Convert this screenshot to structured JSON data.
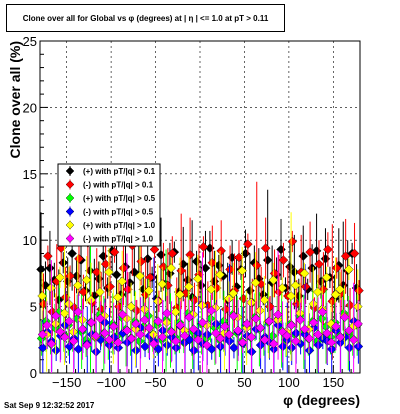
{
  "chart_data": {
    "type": "scatter",
    "title": "Clone  over all for Global vs φ (degrees) at | η | <= 1.0 at pT > 0.11",
    "xlabel": "φ (degrees)",
    "ylabel": "Clone  over all (%)",
    "xlim": [
      -180,
      180
    ],
    "ylim": [
      0,
      25
    ],
    "x_ticks": [
      -150,
      -100,
      -50,
      0,
      50,
      100,
      150
    ],
    "y_ticks": [
      0,
      5,
      10,
      15,
      20,
      25
    ],
    "grid": true,
    "legend_position": "middle-left",
    "series": [
      {
        "name": "(+) with pT/|q| > 0.1",
        "color": "#000000",
        "values": [
          7.8,
          6.6,
          7.9,
          7.0,
          5.5,
          8.3,
          6.9,
          9.0,
          7.3,
          8.5,
          6.2,
          7.7,
          5.8,
          7.1,
          8.8,
          6.4,
          9.2,
          7.4,
          5.9,
          8.0,
          6.8,
          7.6,
          10.2,
          6.3,
          8.6,
          7.2,
          5.6,
          8.9,
          6.7,
          7.5,
          9.1,
          6.1,
          8.2,
          7.0,
          5.7,
          8.4,
          6.6,
          7.9,
          9.4,
          6.9,
          8.1,
          7.3,
          5.5,
          8.7,
          6.5,
          7.8,
          9.0,
          6.2,
          8.3,
          7.1,
          5.9,
          8.5,
          6.8,
          7.4,
          9.3,
          6.4,
          8.0,
          7.6,
          5.8,
          8.8,
          6.3,
          7.9,
          9.2,
          6.9,
          8.6,
          7.2,
          5.6,
          8.1,
          6.6,
          7.7,
          9.0,
          6.4
        ]
      },
      {
        "name": "(-) with pT/|q| > 0.1",
        "color": "#ff0000",
        "values": [
          5.2,
          8.8,
          4.6,
          6.9,
          9.4,
          5.7,
          7.3,
          4.9,
          8.6,
          6.1,
          9.8,
          5.3,
          7.6,
          4.8,
          8.2,
          6.5,
          9.1,
          5.0,
          7.9,
          6.3,
          9.6,
          4.7,
          8.4,
          5.9,
          7.2,
          9.3,
          5.4,
          8.0,
          6.6,
          9.0,
          4.9,
          7.7,
          6.0,
          8.9,
          5.5,
          7.4,
          9.5,
          5.1,
          8.3,
          6.4,
          9.2,
          4.8,
          7.8,
          6.2,
          8.7,
          5.6,
          9.7,
          5.3,
          8.1,
          6.7,
          9.4,
          5.0,
          7.5,
          6.1,
          8.5,
          5.8,
          9.9,
          5.2,
          7.6,
          6.5,
          9.1,
          4.9,
          8.2,
          6.3,
          9.3,
          5.4,
          7.9,
          6.0,
          8.8,
          5.1,
          9.0,
          6.2
        ]
      },
      {
        "name": "(+) with pT/|q| > 0.5",
        "color": "#00ff00",
        "values": [
          2.6,
          3.9,
          2.2,
          3.4,
          4.6,
          2.9,
          3.6,
          2.4,
          4.1,
          3.1,
          2.5,
          3.8,
          2.7,
          4.4,
          3.0,
          2.3,
          3.7,
          2.8,
          4.2,
          3.3,
          2.6,
          3.9,
          2.4,
          3.5,
          4.3,
          2.9,
          3.6,
          2.5,
          4.0,
          3.2,
          2.7,
          3.8,
          2.3,
          4.5,
          3.1,
          2.8,
          3.7,
          2.6,
          4.1,
          3.4,
          2.5,
          3.9,
          2.9,
          4.4,
          3.0,
          2.4,
          3.6,
          2.7,
          4.2,
          3.3,
          2.6,
          3.8,
          2.8,
          4.0,
          3.2,
          2.5,
          3.7,
          2.9,
          4.3,
          3.1,
          2.6,
          3.9,
          2.4,
          4.1,
          3.5,
          2.7,
          3.8,
          2.8,
          4.5,
          3.0,
          2.6,
          3.6
        ]
      },
      {
        "name": "(-) with pT/|q| > 0.5",
        "color": "#0000ff",
        "values": [
          1.9,
          3.1,
          2.4,
          1.7,
          2.8,
          3.6,
          2.0,
          2.6,
          1.8,
          3.3,
          2.2,
          2.9,
          1.6,
          2.5,
          3.8,
          2.1,
          2.7,
          1.9,
          3.0,
          2.3,
          2.6,
          1.7,
          3.4,
          2.0,
          2.8,
          2.4,
          1.8,
          3.2,
          2.1,
          2.7,
          1.9,
          3.5,
          2.3,
          2.5,
          1.7,
          3.0,
          2.2,
          2.9,
          1.8,
          3.7,
          2.0,
          2.6,
          2.4,
          1.9,
          3.1,
          2.2,
          2.8,
          1.6,
          3.3,
          2.1,
          2.7,
          2.3,
          1.8,
          3.6,
          2.0,
          2.5,
          1.9,
          3.0,
          2.2,
          2.9,
          1.7,
          3.4,
          2.1,
          2.6,
          2.4,
          1.8,
          3.2,
          2.3,
          2.7,
          1.9,
          3.9,
          2.0
        ]
      },
      {
        "name": "(+) with pT/|q| > 1.0",
        "color": "#ffff00",
        "values": [
          5.8,
          2.9,
          6.4,
          3.7,
          7.2,
          4.5,
          5.2,
          3.1,
          6.6,
          4.0,
          7.0,
          5.5,
          2.7,
          6.1,
          4.3,
          7.6,
          3.5,
          5.7,
          6.9,
          4.1,
          5.0,
          3.3,
          7.3,
          4.8,
          6.2,
          2.9,
          5.4,
          6.7,
          3.8,
          7.9,
          4.6,
          5.9,
          3.2,
          6.5,
          4.4,
          7.1,
          5.1,
          3.6,
          6.3,
          4.9,
          7.4,
          3.0,
          5.6,
          6.0,
          4.2,
          7.7,
          3.4,
          5.3,
          6.8,
          4.7,
          5.5,
          3.9,
          7.0,
          4.0,
          6.4,
          3.1,
          5.8,
          6.6,
          4.5,
          7.5,
          3.3,
          5.2,
          6.1,
          4.8,
          7.2,
          3.7,
          5.9,
          6.3,
          4.3,
          7.8,
          3.5,
          5.0
        ]
      },
      {
        "name": "(-) with pT/|q| > 1.0",
        "color": "#ff00ff",
        "values": [
          2.9,
          3.6,
          2.2,
          4.3,
          3.1,
          2.7,
          3.9,
          2.4,
          4.6,
          3.3,
          2.1,
          3.8,
          2.8,
          4.1,
          3.0,
          2.5,
          3.5,
          2.3,
          4.4,
          3.2,
          2.6,
          3.7,
          2.9,
          4.0,
          3.4,
          2.2,
          3.9,
          2.7,
          4.5,
          3.1,
          2.4,
          3.6,
          2.8,
          4.2,
          3.3,
          2.5,
          3.8,
          2.1,
          4.7,
          3.0,
          2.6,
          3.5,
          2.9,
          4.3,
          3.2,
          2.3,
          3.7,
          2.7,
          4.1,
          3.4,
          2.5,
          3.9,
          2.2,
          4.4,
          3.1,
          2.8,
          3.6,
          2.4,
          4.0,
          3.3,
          2.6,
          3.8,
          2.9,
          4.6,
          3.0,
          2.3,
          3.5,
          2.7,
          4.2,
          3.2,
          2.5,
          3.7
        ]
      }
    ],
    "x_start": -177.5,
    "x_step": 5
  },
  "title_text": "Clone  over all for Global vs φ (degrees) at | η | <= 1.0 at pT > 0.11",
  "timestamp": "Sat Sep  9 12:32:52 2017"
}
